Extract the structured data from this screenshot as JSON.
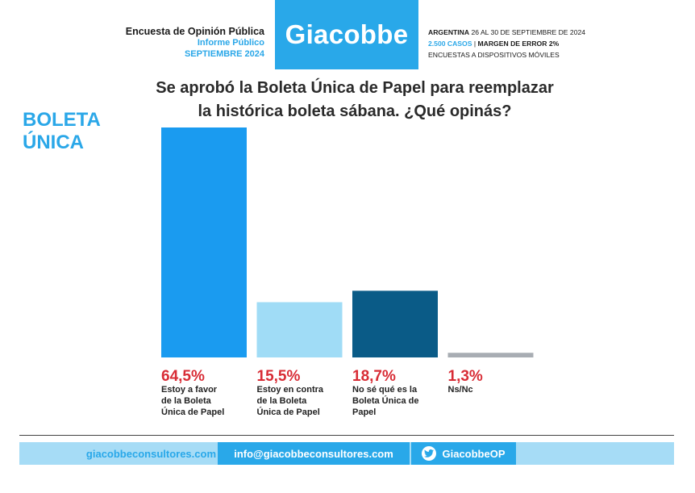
{
  "header": {
    "left_line1": "Encuesta de Opinión Pública",
    "left_line2": "Informe Público",
    "left_line3": "SEPTIEMBRE 2024",
    "logo": "Giacobbe",
    "right_country": "ARGENTINA",
    "right_dates": " 26 AL 30 DE SEPTIEMBRE DE 2024",
    "right_cases": "2.500 CASOS",
    "right_sep": " | ",
    "right_margin": "MARGEN DE ERROR 2%",
    "right_line3": "ENCUESTAS A DISPOSITIVOS MÓVILES"
  },
  "question_line1": "Se aprobó la Boleta Única de Papel para reemplazar",
  "question_line2": "la histórica boleta sábana. ¿Qué opinás?",
  "section_title_line1": "BOLETA",
  "section_title_line2": "ÚNICA",
  "chart_data": {
    "type": "bar",
    "categories": [
      "Estoy a favor de la Boleta Única de Papel",
      "Estoy en contra de la Boleta Única de Papel",
      "No sé qué es la Boleta Única de Papel",
      "Ns/Nc"
    ],
    "values": [
      64.5,
      15.5,
      18.7,
      1.3
    ],
    "value_labels": [
      "64,5%",
      "15,5%",
      "18,7%",
      "1,3%"
    ],
    "category_label_lines": [
      [
        "Estoy a favor",
        "de la Boleta",
        "Única de Papel"
      ],
      [
        "Estoy en contra",
        "de la Boleta",
        "Única de Papel"
      ],
      [
        "No sé qué es la",
        "Boleta Única de",
        "Papel"
      ],
      [
        "Ns/Nc"
      ]
    ],
    "colors": [
      "#1a9bf0",
      "#a0dcf6",
      "#0a5b87",
      "#a8adb3"
    ],
    "value_label_color": "#d82c35",
    "ylim": [
      0,
      64.5
    ],
    "grid": false
  },
  "footer": {
    "website": "giacobbeconsultores.com",
    "email": "info@giacobbeconsultores.com",
    "twitter": "GiacobbeOP",
    "twitter_icon": "twitter-bird-icon"
  },
  "colors": {
    "brand_blue": "#29a8e9",
    "accent_red": "#d82c35"
  }
}
